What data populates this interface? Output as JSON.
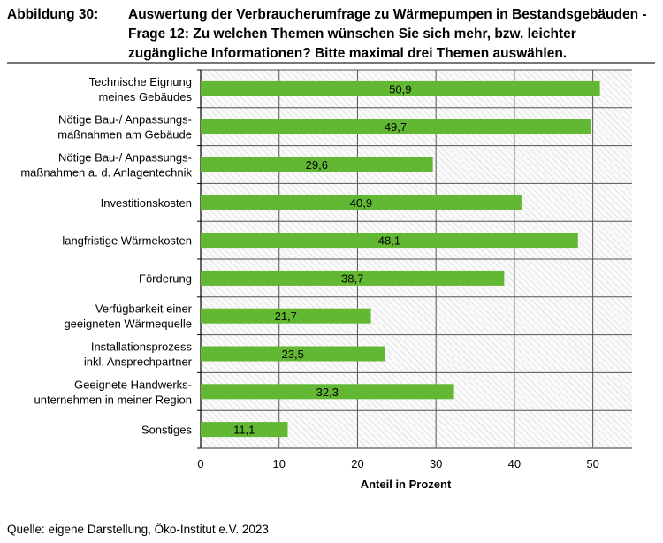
{
  "figure_label": "Abbildung 30:",
  "title": "Auswertung der Verbraucherumfrage zu Wärmepumpen in Bestandsgebäuden - Frage 12: Zu welchen Themen wünschen Sie sich mehr, bzw. leichter zugängliche Informationen? Bitte maximal drei Themen auswählen.",
  "source": "Quelle: eigene Darstellung, Öko-Institut e.V. 2023",
  "chart_data": {
    "type": "bar",
    "orientation": "horizontal",
    "categories": [
      [
        "Technische Eignung",
        "meines Gebäudes"
      ],
      [
        "Nötige Bau-/ Anpassungs-",
        "maßnahmen am Gebäude"
      ],
      [
        "Nötige Bau-/ Anpassungs-",
        "maßnahmen a. d. Anlagentechnik"
      ],
      [
        "Investitionskosten"
      ],
      [
        "langfristige Wärmekosten"
      ],
      [
        "Förderung"
      ],
      [
        "Verfügbarkeit einer",
        "geeigneten Wärmequelle"
      ],
      [
        "Installationsprozess",
        "inkl. Ansprechpartner"
      ],
      [
        "Geeignete Handwerks-",
        "unternehmen in meiner Region"
      ],
      [
        "Sonstiges"
      ]
    ],
    "values": [
      50.9,
      49.7,
      29.6,
      40.9,
      48.1,
      38.7,
      21.7,
      23.5,
      32.3,
      11.1
    ],
    "data_labels": [
      "50,9",
      "49,7",
      "29,6",
      "40,9",
      "48,1",
      "38,7",
      "21,7",
      "23,5",
      "32,3",
      "11,1"
    ],
    "xlabel": "Anteil in Prozent",
    "xlim": [
      0,
      55
    ],
    "xticks": [
      0,
      10,
      20,
      30,
      40,
      50
    ],
    "grid": true,
    "bar_color": "#62b832",
    "background": "hatched"
  }
}
